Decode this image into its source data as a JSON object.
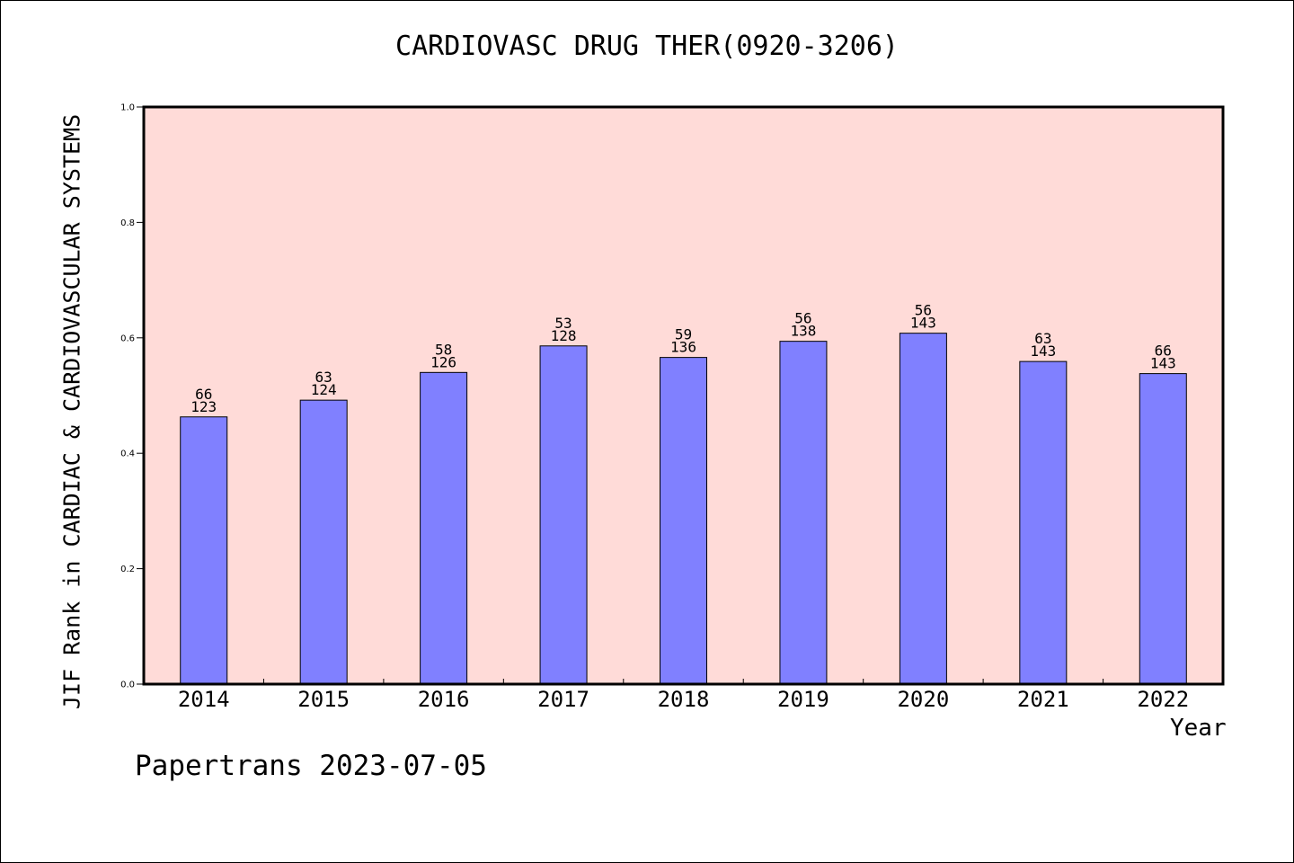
{
  "chart_data": {
    "type": "bar",
    "title": "CARDIOVASC DRUG THER(0920-3206)",
    "xlabel": "Year",
    "ylabel": "JIF Rank in CARDIAC & CARDIOVASCULAR SYSTEMS",
    "ylim": [
      0,
      1.0
    ],
    "yticks": [
      "0.0",
      "0.2",
      "0.4",
      "0.6",
      "0.8",
      "1.0"
    ],
    "categories": [
      "2014",
      "2015",
      "2016",
      "2017",
      "2018",
      "2019",
      "2020",
      "2021",
      "2022"
    ],
    "values": [
      0.463,
      0.492,
      0.54,
      0.586,
      0.566,
      0.594,
      0.608,
      0.559,
      0.538
    ],
    "rank": [
      "66",
      "63",
      "58",
      "53",
      "59",
      "56",
      "56",
      "63",
      "66"
    ],
    "total": [
      "123",
      "124",
      "126",
      "128",
      "136",
      "138",
      "143",
      "143",
      "143"
    ],
    "grid": false,
    "legend": "none",
    "colors": {
      "plot_background": "#FFDBD8",
      "bar_fill": "#8080FF",
      "bar_edge": "#000000"
    }
  },
  "footer": {
    "text": "Papertrans 2023-07-05"
  }
}
